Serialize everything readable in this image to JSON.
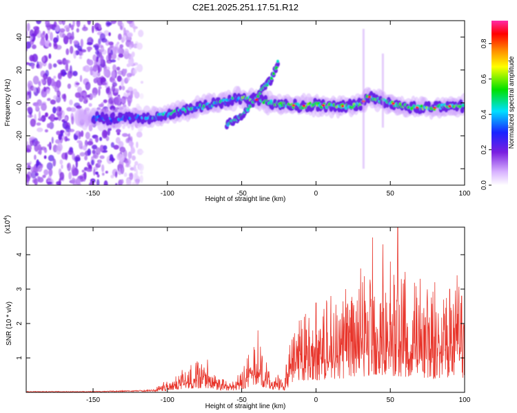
{
  "title": "C2E1.2025.251.17.51.R12",
  "chart_data": [
    {
      "type": "heatmap",
      "title": "C2E1.2025.251.17.51.R12",
      "xlabel": "Height of straight line (km)",
      "ylabel": "Frequency (Hz)",
      "xlim": [
        -195,
        100
      ],
      "ylim": [
        -50,
        50
      ],
      "xticks": [
        -150,
        -100,
        -50,
        0,
        50,
        100
      ],
      "yticks": [
        -40,
        -20,
        0,
        20,
        40
      ],
      "colorbar": {
        "label": "Normalized spectral amplitude",
        "range": [
          0.0,
          0.93
        ],
        "ticks": [
          "0.0",
          "0.2",
          "0.4",
          "0.6",
          "0.8"
        ],
        "colormap": "white-violet-blue-cyan-green-yellow-red"
      },
      "main_band_center_hz": [
        [
          -150,
          -9
        ],
        [
          -140,
          -10
        ],
        [
          -130,
          -9
        ],
        [
          -120,
          -9
        ],
        [
          -110,
          -9
        ],
        [
          -100,
          -7
        ],
        [
          -90,
          -5
        ],
        [
          -80,
          -3
        ],
        [
          -70,
          -1
        ],
        [
          -60,
          1
        ],
        [
          -50,
          3
        ],
        [
          -40,
          2
        ],
        [
          -30,
          0
        ],
        [
          -20,
          -1
        ],
        [
          -10,
          -2
        ],
        [
          0,
          -1
        ],
        [
          10,
          -2
        ],
        [
          20,
          -2
        ],
        [
          30,
          -1
        ],
        [
          35,
          4
        ],
        [
          40,
          2
        ],
        [
          50,
          0
        ],
        [
          60,
          -2
        ],
        [
          70,
          -3
        ],
        [
          80,
          -3
        ],
        [
          90,
          -2
        ],
        [
          100,
          -2
        ]
      ],
      "secondary_branch_hz": [
        [
          -60,
          -13
        ],
        [
          -50,
          -8
        ],
        [
          -40,
          3
        ],
        [
          -35,
          10
        ],
        [
          -30,
          14
        ],
        [
          -25,
          26
        ]
      ],
      "noise_region_km": [
        -195,
        -125
      ]
    },
    {
      "type": "line",
      "title": "",
      "xlabel": "Height of straight line (km)",
      "ylabel": "SNR (10 * v/v)",
      "y_scale_label": "(x10^4)",
      "xlim": [
        -195,
        100
      ],
      "ylim": [
        0,
        4.8
      ],
      "xticks": [
        -150,
        -100,
        -50,
        0,
        50,
        100
      ],
      "yticks": [
        1,
        2,
        3,
        4
      ],
      "color": "#e8342a",
      "envelope": [
        [
          -195,
          0.02
        ],
        [
          -150,
          0.02
        ],
        [
          -110,
          0.05
        ],
        [
          -100,
          0.2
        ],
        [
          -90,
          0.35
        ],
        [
          -80,
          0.5
        ],
        [
          -75,
          0.45
        ],
        [
          -65,
          0.25
        ],
        [
          -55,
          0.2
        ],
        [
          -48,
          0.45
        ],
        [
          -40,
          0.9
        ],
        [
          -37,
          0.7
        ],
        [
          -30,
          0.3
        ],
        [
          -20,
          0.25
        ],
        [
          -18,
          0.8
        ],
        [
          -10,
          1.2
        ],
        [
          0,
          1.4
        ],
        [
          10,
          1.5
        ],
        [
          20,
          1.6
        ],
        [
          30,
          1.8
        ],
        [
          40,
          2.0
        ],
        [
          50,
          1.9
        ],
        [
          60,
          1.8
        ],
        [
          70,
          1.7
        ],
        [
          80,
          1.6
        ],
        [
          90,
          1.6
        ],
        [
          100,
          1.7
        ]
      ],
      "peaks": [
        [
          -90,
          0.65
        ],
        [
          -80,
          0.9
        ],
        [
          -73,
          0.95
        ],
        [
          -39,
          1.8
        ],
        [
          -20,
          0.8
        ],
        [
          -10,
          2.1
        ],
        [
          0,
          2.6
        ],
        [
          10,
          2.8
        ],
        [
          20,
          3.0
        ],
        [
          30,
          3.6
        ],
        [
          38,
          4.5
        ],
        [
          45,
          4.3
        ],
        [
          50,
          3.8
        ],
        [
          55,
          4.8
        ],
        [
          60,
          3.5
        ],
        [
          70,
          3.3
        ],
        [
          80,
          3.2
        ],
        [
          90,
          3.0
        ],
        [
          95,
          3.4
        ],
        [
          98,
          2.8
        ]
      ]
    }
  ]
}
